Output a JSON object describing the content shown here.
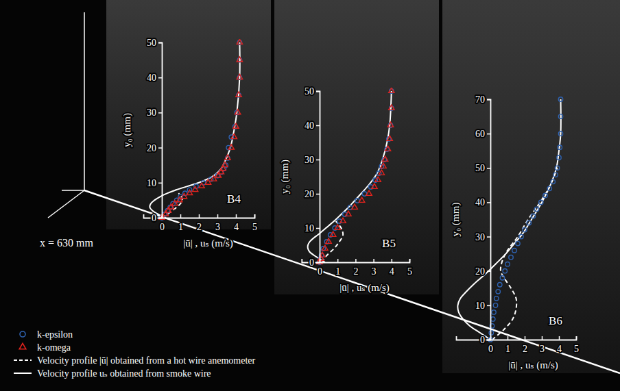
{
  "figure": {
    "annotation": "x = 630 mm",
    "legend": "lower left"
  },
  "chart_data": [
    {
      "type": "line",
      "title": "B4",
      "x_label": "|ū| , uₛ (m/s)",
      "y_label": "y₀ (mm)",
      "xlim": [
        -1,
        5
      ],
      "xticks": [
        0,
        1,
        2,
        3,
        4,
        5
      ],
      "ylim": [
        0,
        50
      ],
      "yticks": [
        0,
        10,
        20,
        30,
        40,
        50
      ],
      "series": [
        {
          "name": "k-epsilon",
          "type": "scatter",
          "marker": "circle",
          "color": "#2f62b0",
          "x": [
            0,
            0.15,
            0.3,
            0.45,
            0.6,
            0.8,
            1.0,
            1.25,
            1.5,
            1.85,
            2.25,
            2.65,
            3.0,
            3.2,
            3.35,
            3.45,
            3.55,
            3.6,
            3.75,
            3.95,
            4.05,
            4.15,
            4.2,
            4.2,
            4.2
          ],
          "values": [
            0,
            1,
            2,
            3,
            4,
            5,
            6,
            7,
            8,
            9,
            10,
            11,
            12,
            13,
            14,
            15,
            17,
            20,
            23,
            26,
            30,
            35,
            40,
            45,
            50
          ]
        },
        {
          "name": "k-omega",
          "type": "scatter",
          "marker": "triangle",
          "color": "#e3231d",
          "x": [
            0,
            0.2,
            0.35,
            0.5,
            0.7,
            0.95,
            1.2,
            1.5,
            1.8,
            2.15,
            2.5,
            2.8,
            3.05,
            3.2,
            3.3,
            3.4,
            3.55,
            3.75,
            3.9,
            4.0,
            4.1,
            4.15,
            4.2,
            4.2,
            4.2
          ],
          "values": [
            0,
            1,
            2,
            3,
            4,
            5,
            6,
            7,
            8,
            9,
            10,
            11,
            12,
            13,
            14,
            15,
            17,
            20,
            23,
            26,
            30,
            35,
            40,
            45,
            50
          ]
        },
        {
          "name": "Velocity profile |ū| obtained from a hot wire anemometer",
          "type": "line",
          "line_style": "dashed",
          "color": "#ffffff",
          "x": [
            0,
            0.3,
            0.55,
            0.8,
            1.0,
            1.1,
            1.05,
            0.9
          ],
          "values": [
            0,
            1,
            2,
            3,
            4,
            5,
            6,
            7
          ]
        },
        {
          "name": "Velocity profile uₛ obtained from smoke wire",
          "type": "line",
          "line_style": "solid",
          "color": "#ffffff",
          "x": [
            0.2,
            -0.2,
            -0.5,
            -0.65,
            -0.6,
            -0.4,
            -0.1,
            0.3,
            0.8,
            1.4,
            2.0,
            2.8,
            3.2,
            3.4,
            3.7,
            3.9,
            4.05,
            4.2,
            4.2
          ],
          "values": [
            0,
            1,
            2,
            3,
            4,
            5,
            6,
            7,
            8,
            9,
            10,
            12,
            14,
            16,
            20,
            25,
            30,
            40,
            50
          ]
        }
      ]
    },
    {
      "type": "line",
      "title": "B5",
      "x_label": "|ū| , uₛ (m/s)",
      "y_label": "y₀ (mm)",
      "xlim": [
        -1,
        5
      ],
      "xticks": [
        0,
        1,
        2,
        3,
        4,
        5
      ],
      "ylim": [
        0,
        50
      ],
      "yticks": [
        0,
        10,
        20,
        30,
        40,
        50
      ],
      "series": [
        {
          "name": "k-epsilon",
          "type": "scatter",
          "marker": "circle",
          "color": "#2f62b0",
          "x": [
            0,
            0.05,
            0.1,
            0.2,
            0.4,
            0.6,
            0.85,
            1.1,
            1.4,
            1.7,
            2.1,
            2.5,
            2.85,
            3.1,
            3.3,
            3.45,
            3.6,
            3.75,
            3.85,
            3.95,
            4.0,
            4.0
          ],
          "values": [
            0,
            1,
            2,
            4,
            6,
            8,
            10,
            12,
            14,
            16,
            18,
            20,
            22,
            24,
            26,
            28,
            30,
            33,
            36,
            40,
            45,
            50
          ]
        },
        {
          "name": "k-omega",
          "type": "scatter",
          "marker": "triangle",
          "color": "#e3231d",
          "x": [
            0,
            0.07,
            0.15,
            0.3,
            0.5,
            0.75,
            1.0,
            1.3,
            1.6,
            1.95,
            2.35,
            2.75,
            3.05,
            3.25,
            3.45,
            3.55,
            3.65,
            3.8,
            3.9,
            3.95,
            4.0,
            4.0
          ],
          "values": [
            0,
            1,
            2,
            4,
            6,
            8,
            10,
            12,
            14,
            16,
            18,
            20,
            22,
            24,
            26,
            28,
            30,
            33,
            36,
            40,
            45,
            50
          ]
        },
        {
          "name": "Velocity profile |ū| obtained from a hot wire anemometer",
          "type": "line",
          "line_style": "dashed",
          "color": "#ffffff",
          "x": [
            0.1,
            0.4,
            0.8,
            1.1,
            1.3,
            1.2,
            0.9
          ],
          "values": [
            0,
            2,
            4,
            6,
            8,
            10,
            12
          ]
        },
        {
          "name": "Velocity profile uₛ obtained from smoke wire",
          "type": "line",
          "line_style": "solid",
          "color": "#ffffff",
          "x": [
            0.3,
            0.0,
            -0.3,
            -0.55,
            -0.65,
            -0.65,
            -0.55,
            -0.35,
            -0.1,
            0.35,
            0.8,
            1.2,
            1.6,
            1.95,
            2.3,
            2.8,
            3.2,
            3.5,
            3.75,
            3.9,
            4.0
          ],
          "values": [
            0,
            1,
            2,
            3,
            4,
            5,
            6,
            7,
            8,
            10,
            12,
            14,
            16,
            18,
            20,
            23,
            26,
            30,
            35,
            40,
            50
          ]
        }
      ]
    },
    {
      "type": "line",
      "title": "B6",
      "x_label": "|ū| , uₛ (m/s)",
      "y_label": "y₀ (mm)",
      "xlim": [
        -2,
        5
      ],
      "xticks": [
        0,
        1,
        2,
        3,
        4,
        5
      ],
      "ylim": [
        0,
        70
      ],
      "yticks": [
        0,
        10,
        20,
        30,
        40,
        50,
        60,
        70
      ],
      "series": [
        {
          "name": "k-epsilon",
          "type": "scatter",
          "marker": "circle",
          "color": "#2f62b0",
          "x": [
            0,
            0.05,
            0.1,
            0.15,
            0.2,
            0.3,
            0.35,
            0.45,
            0.55,
            0.7,
            0.85,
            1.0,
            1.2,
            1.4,
            1.6,
            1.8,
            2.0,
            2.25,
            2.5,
            2.7,
            2.95,
            3.2,
            3.45,
            3.65,
            3.8,
            3.9,
            4.0,
            4.05,
            4.1,
            4.1,
            4.1
          ],
          "values": [
            0,
            2,
            4,
            6,
            8,
            10,
            12,
            14,
            16,
            18,
            20,
            22,
            24,
            26,
            28,
            30,
            32,
            34,
            36,
            38,
            40,
            42,
            44,
            46,
            48,
            50,
            53,
            56,
            60,
            65,
            70
          ]
        },
        {
          "name": "Velocity profile |ū| obtained from a hot wire anemometer",
          "type": "line",
          "line_style": "dashed",
          "color": "#ffffff",
          "x": [
            0.1,
            0.8,
            1.3,
            1.5,
            1.5,
            1.2,
            0.8,
            0.6,
            0.7,
            1.0,
            1.6,
            2.2,
            2.9,
            3.5,
            3.9
          ],
          "values": [
            0,
            3,
            6,
            9,
            12,
            15,
            18,
            20,
            23,
            26,
            30,
            35,
            40,
            45,
            50
          ]
        },
        {
          "name": "Velocity profile uₛ obtained from smoke wire",
          "type": "line",
          "line_style": "solid",
          "color": "#ffffff",
          "x": [
            0.0,
            -0.6,
            -1.2,
            -1.6,
            -1.85,
            -1.9,
            -1.75,
            -1.4,
            -1.0,
            -0.55,
            -0.1,
            0.3,
            0.9,
            1.4,
            1.9,
            2.4,
            3.0,
            3.5,
            3.85,
            4.0,
            4.1,
            4.1
          ],
          "values": [
            0,
            2,
            4,
            6,
            8,
            10,
            12,
            14,
            16,
            18,
            20,
            22,
            25,
            28,
            31,
            35,
            40,
            45,
            50,
            55,
            60,
            70
          ]
        }
      ]
    }
  ]
}
